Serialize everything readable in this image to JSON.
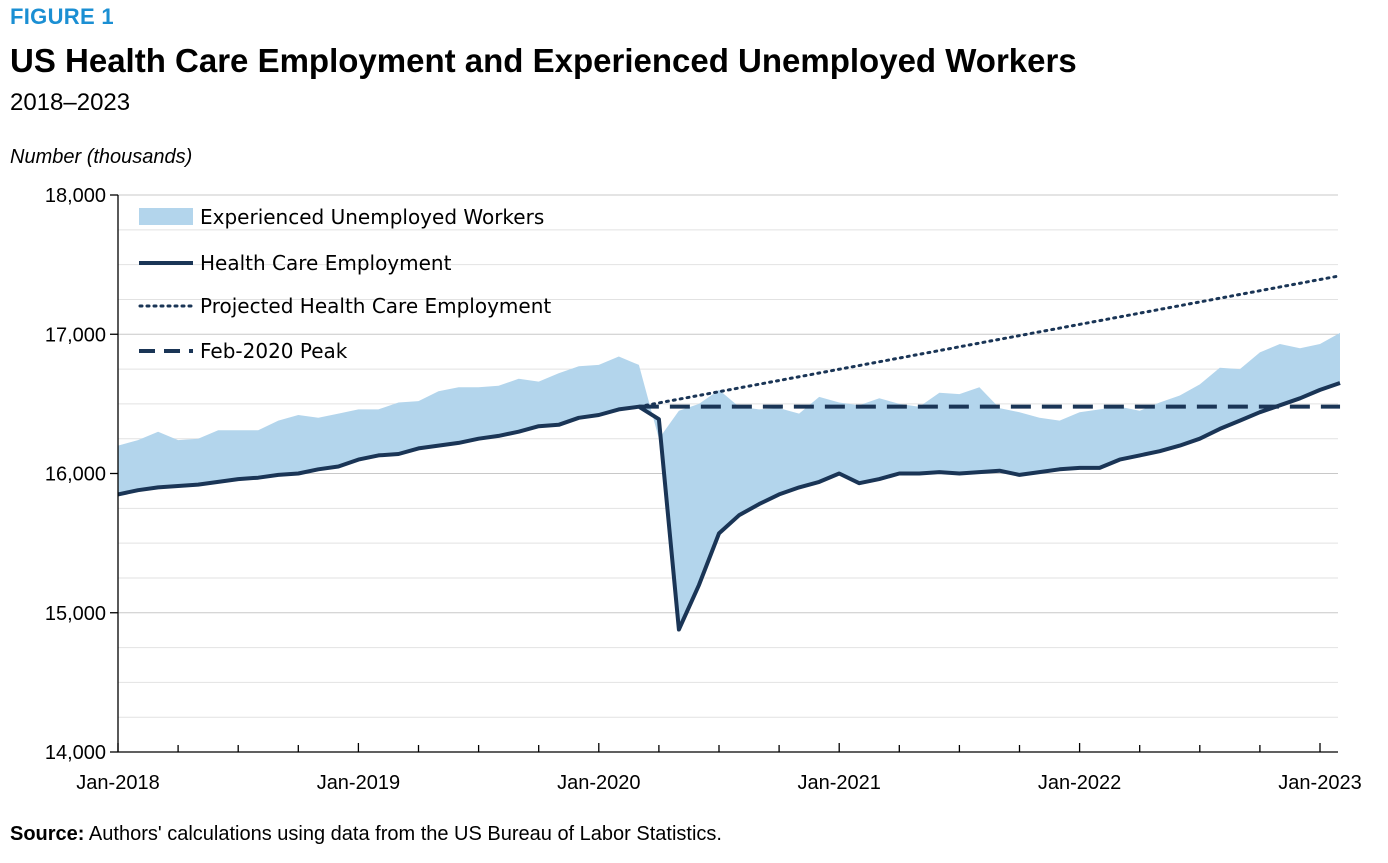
{
  "figure_label": "FIGURE 1",
  "title": "US Health Care Employment and Experienced Unemployed Workers",
  "subtitle": "2018–2023",
  "source_label": "Source:",
  "source_text": " Authors' calculations using data from the US Bureau of Labor Statistics.",
  "colors": {
    "accent": "#1b8fd3",
    "area": "#b3d5ec",
    "line": "#1a3556",
    "grid": "#d9d9d9"
  },
  "chart_data": {
    "type": "line",
    "ylabel": "Number (thousands)",
    "xlabel": "",
    "ylim": [
      14000,
      18000
    ],
    "yticks": [
      14000,
      15000,
      16000,
      17000,
      18000
    ],
    "ytick_labels": [
      "14,000",
      "15,000",
      "16,000",
      "17,000",
      "18,000"
    ],
    "x_start": "Jan-2018",
    "n_months": 62,
    "xtick_labels": [
      {
        "month": 0,
        "label": "Jan-2018"
      },
      {
        "month": 12,
        "label": "Jan-2019"
      },
      {
        "month": 24,
        "label": "Jan-2020"
      },
      {
        "month": 36,
        "label": "Jan-2021"
      },
      {
        "month": 48,
        "label": "Jan-2022"
      },
      {
        "month": 60,
        "label": "Jan-2023"
      }
    ],
    "legend": [
      {
        "key": "unemployed",
        "label": "Experienced Unemployed Workers",
        "style": "area"
      },
      {
        "key": "employment",
        "label": "Health Care Employment",
        "style": "solid"
      },
      {
        "key": "projected",
        "label": "Projected Health Care Employment",
        "style": "dotted"
      },
      {
        "key": "peak",
        "label": "Feb-2020 Peak",
        "style": "dashed"
      }
    ],
    "series": [
      {
        "name": "Health Care Employment",
        "start_month": 0,
        "values": [
          15850,
          15880,
          15900,
          15910,
          15920,
          15940,
          15960,
          15970,
          15990,
          16000,
          16030,
          16050,
          16100,
          16130,
          16140,
          16180,
          16200,
          16220,
          16250,
          16270,
          16300,
          16340,
          16350,
          16400,
          16420,
          16460,
          16480,
          16390,
          14880,
          15200,
          15570,
          15700,
          15780,
          15850,
          15900,
          15940,
          16000,
          15930,
          15960,
          16000,
          16000,
          16010,
          16000,
          16010,
          16020,
          15990,
          16010,
          16030,
          16040,
          16040,
          16100,
          16130,
          16160,
          16200,
          16250,
          16320,
          16380,
          16440,
          16490,
          16540,
          16600,
          16650
        ]
      },
      {
        "name": "Experienced Unemployed Workers (upper bound: employment + unemployed)",
        "start_month": 0,
        "values": [
          16200,
          16240,
          16300,
          16240,
          16250,
          16310,
          16310,
          16310,
          16380,
          16420,
          16400,
          16430,
          16460,
          16460,
          16510,
          16520,
          16590,
          16620,
          16620,
          16630,
          16680,
          16660,
          16720,
          16770,
          16780,
          16840,
          16780,
          16250,
          16450,
          16500,
          16600,
          16480,
          16460,
          16470,
          16430,
          16550,
          16510,
          16490,
          16540,
          16500,
          16480,
          16580,
          16570,
          16620,
          16470,
          16440,
          16400,
          16380,
          16440,
          16460,
          16480,
          16450,
          16510,
          16560,
          16640,
          16760,
          16750,
          16870,
          16930,
          16900,
          16930,
          17010
        ]
      },
      {
        "name": "Projected Health Care Employment",
        "start_month": 26,
        "values": [
          16480,
          17420
        ]
      },
      {
        "name": "Feb-2020 Peak",
        "start_month": 26,
        "values": [
          16480,
          16480
        ]
      }
    ]
  }
}
